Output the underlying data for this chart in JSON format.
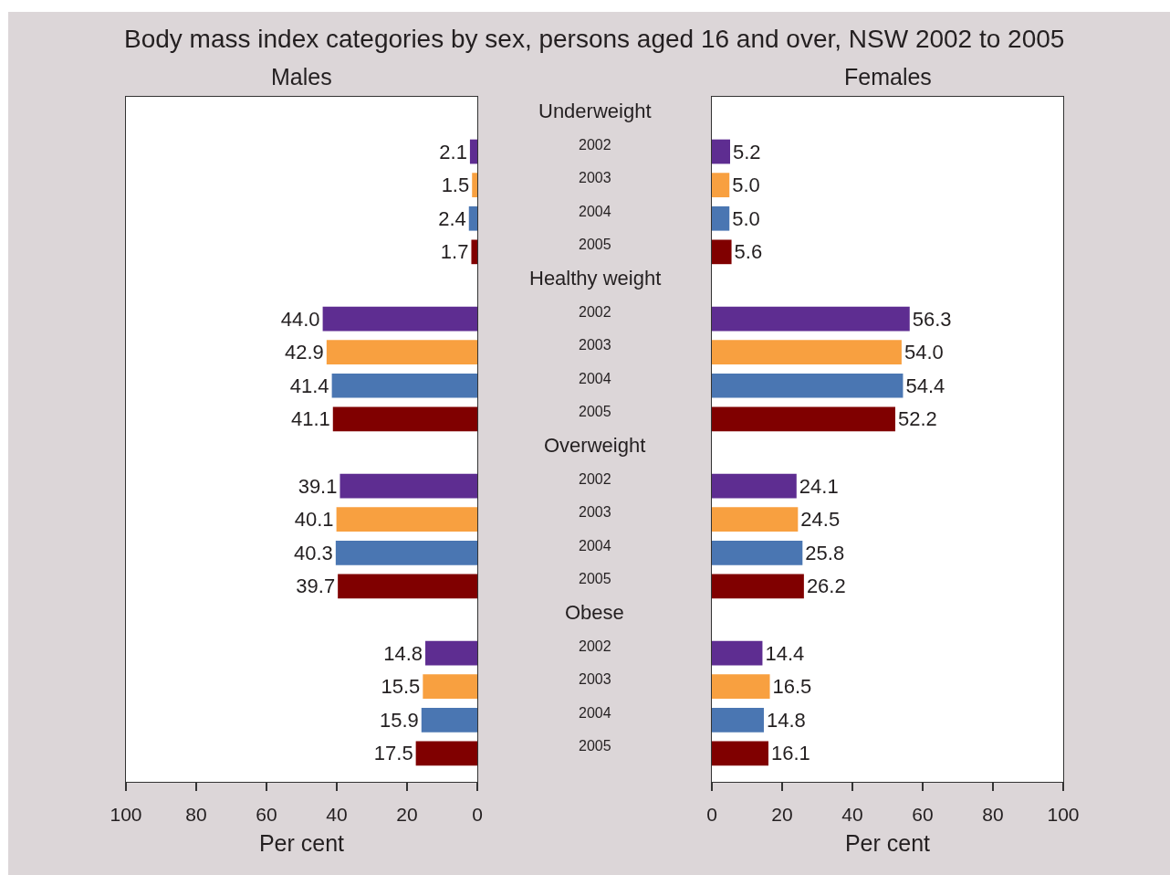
{
  "chart_data": [
    {
      "type": "bar",
      "orientation": "horizontal",
      "title": "Body mass index categories by sex, persons aged 16 and over, NSW 2002 to 2005",
      "subtitle": "Males",
      "xlabel": "Per cent",
      "tick_labels": "x",
      "categories": [
        "Underweight",
        "2002",
        "2003",
        "2004",
        "2005",
        "Healthy weight",
        "2002",
        "2003",
        "2004",
        "2005",
        "Overweight",
        "2002",
        "2003",
        "2004",
        "2005",
        "Obese",
        "2002",
        "2003",
        "2004",
        "2005"
      ],
      "values": [
        null,
        2.1,
        1.5,
        2.4,
        1.7,
        null,
        44.0,
        42.9,
        41.4,
        41.1,
        null,
        39.1,
        40.1,
        40.3,
        39.7,
        null,
        14.8,
        15.5,
        15.9,
        17.5
      ],
      "value_labels": [
        null,
        "2.1",
        "1.5",
        "2.4",
        "1.7",
        null,
        "44.0",
        "42.9",
        "41.4",
        "41.1",
        null,
        "39.1",
        "40.1",
        "40.3",
        "39.7",
        null,
        "14.8",
        "15.5",
        "15.9",
        "17.5"
      ],
      "colors": [
        null,
        "#5e2d91",
        "#f8a040",
        "#4a76b2",
        "#800000",
        null,
        "#5e2d91",
        "#f8a040",
        "#4a76b2",
        "#800000",
        null,
        "#5e2d91",
        "#f8a040",
        "#4a76b2",
        "#800000",
        null,
        "#5e2d91",
        "#f8a040",
        "#4a76b2",
        "#800000"
      ],
      "xlim": [
        100,
        0
      ],
      "xticks": [
        100,
        80,
        60,
        40,
        20,
        0
      ]
    },
    {
      "type": "bar",
      "orientation": "horizontal",
      "subtitle": "Females",
      "xlabel": "Per cent",
      "categories": [
        "Underweight",
        "2002",
        "2003",
        "2004",
        "2005",
        "Healthy weight",
        "2002",
        "2003",
        "2004",
        "2005",
        "Overweight",
        "2002",
        "2003",
        "2004",
        "2005",
        "Obese",
        "2002",
        "2003",
        "2004",
        "2005"
      ],
      "values": [
        null,
        5.2,
        5.0,
        5.0,
        5.6,
        null,
        56.3,
        54.0,
        54.4,
        52.2,
        null,
        24.1,
        24.5,
        25.8,
        26.2,
        null,
        14.4,
        16.5,
        14.8,
        16.1
      ],
      "value_labels": [
        null,
        "5.2",
        "5.0",
        "5.0",
        "5.6",
        null,
        "56.3",
        "54.0",
        "54.4",
        "52.2",
        null,
        "24.1",
        "24.5",
        "25.8",
        "26.2",
        null,
        "14.4",
        "16.5",
        "14.8",
        "16.1"
      ],
      "colors": [
        null,
        "#5e2d91",
        "#f8a040",
        "#4a76b2",
        "#800000",
        null,
        "#5e2d91",
        "#f8a040",
        "#4a76b2",
        "#800000",
        null,
        "#5e2d91",
        "#f8a040",
        "#4a76b2",
        "#800000",
        null,
        "#5e2d91",
        "#f8a040",
        "#4a76b2",
        "#800000"
      ],
      "xlim": [
        0,
        100
      ],
      "xticks": [
        0,
        20,
        40,
        60,
        80,
        100
      ]
    }
  ]
}
